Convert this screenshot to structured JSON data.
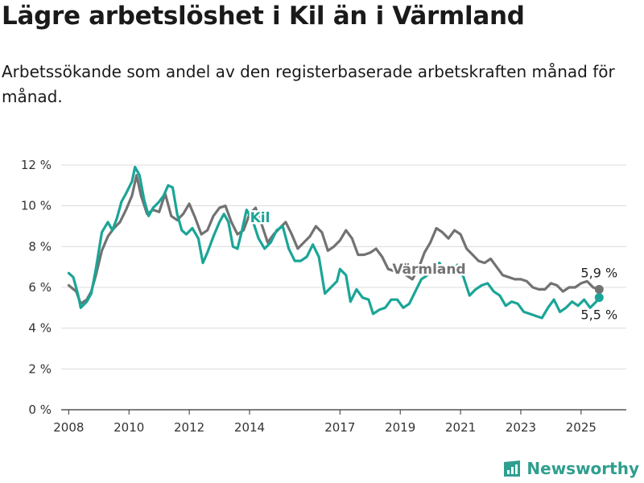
{
  "header": {
    "title": "Lägre arbetslöshet i Kil än i Värmland",
    "subtitle": "Arbetssökande som andel av den registerbaserade arbetskraften månad för månad."
  },
  "brand": {
    "name": "Newsworthy",
    "icon": "newsworthy-logo-icon",
    "color": "#2f9e8f"
  },
  "chart_data": {
    "type": "line",
    "title": "",
    "xlabel": "",
    "ylabel": "",
    "ylim": [
      0,
      12
    ],
    "xlim": [
      2007.75,
      2026.5
    ],
    "grid": true,
    "y_ticks": [
      0,
      2,
      4,
      6,
      8,
      10,
      12
    ],
    "y_tick_labels": [
      "0 %",
      "2 %",
      "4 %",
      "6 %",
      "8 %",
      "10 %",
      "12 %"
    ],
    "x_ticks": [
      2008,
      2010,
      2012,
      2014,
      2017,
      2019,
      2021,
      2023,
      2025
    ],
    "x_tick_labels": [
      "2008",
      "2010",
      "2012",
      "2014",
      "2017",
      "2019",
      "2021",
      "2023",
      "2025"
    ],
    "series": [
      {
        "name": "Värmland",
        "color": "#727272",
        "end_label": "5,9 %",
        "points": [
          [
            2008.0,
            6.1
          ],
          [
            2008.25,
            5.8
          ],
          [
            2008.4,
            5.2
          ],
          [
            2008.6,
            5.4
          ],
          [
            2008.75,
            5.8
          ],
          [
            2008.9,
            6.6
          ],
          [
            2009.1,
            7.8
          ],
          [
            2009.3,
            8.5
          ],
          [
            2009.5,
            8.9
          ],
          [
            2009.7,
            9.2
          ],
          [
            2009.9,
            9.8
          ],
          [
            2010.1,
            10.5
          ],
          [
            2010.25,
            11.5
          ],
          [
            2010.4,
            10.5
          ],
          [
            2010.6,
            9.6
          ],
          [
            2010.8,
            9.8
          ],
          [
            2011.0,
            9.7
          ],
          [
            2011.2,
            10.6
          ],
          [
            2011.4,
            9.5
          ],
          [
            2011.6,
            9.3
          ],
          [
            2011.8,
            9.6
          ],
          [
            2012.0,
            10.1
          ],
          [
            2012.2,
            9.4
          ],
          [
            2012.4,
            8.6
          ],
          [
            2012.6,
            8.8
          ],
          [
            2012.8,
            9.5
          ],
          [
            2013.0,
            9.9
          ],
          [
            2013.2,
            10.0
          ],
          [
            2013.4,
            9.2
          ],
          [
            2013.6,
            8.6
          ],
          [
            2013.8,
            8.8
          ],
          [
            2014.0,
            9.6
          ],
          [
            2014.2,
            9.9
          ],
          [
            2014.4,
            9.1
          ],
          [
            2014.6,
            8.2
          ],
          [
            2014.8,
            8.6
          ],
          [
            2015.0,
            8.9
          ],
          [
            2015.2,
            9.2
          ],
          [
            2015.4,
            8.6
          ],
          [
            2015.6,
            7.9
          ],
          [
            2015.8,
            8.2
          ],
          [
            2016.0,
            8.5
          ],
          [
            2016.2,
            9.0
          ],
          [
            2016.4,
            8.7
          ],
          [
            2016.6,
            7.8
          ],
          [
            2016.8,
            8.0
          ],
          [
            2017.0,
            8.3
          ],
          [
            2017.2,
            8.8
          ],
          [
            2017.4,
            8.4
          ],
          [
            2017.6,
            7.6
          ],
          [
            2017.8,
            7.6
          ],
          [
            2018.0,
            7.7
          ],
          [
            2018.2,
            7.9
          ],
          [
            2018.4,
            7.5
          ],
          [
            2018.6,
            6.9
          ],
          [
            2018.8,
            6.8
          ],
          [
            2019.0,
            7.0
          ],
          [
            2019.2,
            6.6
          ],
          [
            2019.4,
            6.4
          ],
          [
            2019.6,
            6.9
          ],
          [
            2019.8,
            7.7
          ],
          [
            2020.0,
            8.2
          ],
          [
            2020.2,
            8.9
          ],
          [
            2020.4,
            8.7
          ],
          [
            2020.6,
            8.4
          ],
          [
            2020.8,
            8.8
          ],
          [
            2021.0,
            8.6
          ],
          [
            2021.2,
            7.9
          ],
          [
            2021.4,
            7.6
          ],
          [
            2021.6,
            7.3
          ],
          [
            2021.8,
            7.2
          ],
          [
            2022.0,
            7.4
          ],
          [
            2022.2,
            7.0
          ],
          [
            2022.4,
            6.6
          ],
          [
            2022.6,
            6.5
          ],
          [
            2022.8,
            6.4
          ],
          [
            2023.0,
            6.4
          ],
          [
            2023.2,
            6.3
          ],
          [
            2023.4,
            6.0
          ],
          [
            2023.6,
            5.9
          ],
          [
            2023.8,
            5.9
          ],
          [
            2024.0,
            6.2
          ],
          [
            2024.2,
            6.1
          ],
          [
            2024.4,
            5.8
          ],
          [
            2024.6,
            6.0
          ],
          [
            2024.8,
            6.0
          ],
          [
            2025.0,
            6.2
          ],
          [
            2025.2,
            6.3
          ],
          [
            2025.4,
            6.0
          ],
          [
            2025.6,
            5.9
          ]
        ]
      },
      {
        "name": "Kil",
        "color": "#1aa597",
        "end_label": "5,5 %",
        "points": [
          [
            2008.0,
            6.7
          ],
          [
            2008.15,
            6.5
          ],
          [
            2008.3,
            5.7
          ],
          [
            2008.4,
            5.0
          ],
          [
            2008.6,
            5.3
          ],
          [
            2008.75,
            5.7
          ],
          [
            2008.9,
            6.9
          ],
          [
            2009.1,
            8.7
          ],
          [
            2009.3,
            9.2
          ],
          [
            2009.45,
            8.8
          ],
          [
            2009.6,
            9.4
          ],
          [
            2009.75,
            10.2
          ],
          [
            2009.9,
            10.6
          ],
          [
            2010.1,
            11.2
          ],
          [
            2010.2,
            11.9
          ],
          [
            2010.35,
            11.5
          ],
          [
            2010.5,
            10.3
          ],
          [
            2010.65,
            9.5
          ],
          [
            2010.8,
            9.9
          ],
          [
            2011.0,
            10.2
          ],
          [
            2011.15,
            10.5
          ],
          [
            2011.3,
            11.0
          ],
          [
            2011.45,
            10.9
          ],
          [
            2011.6,
            9.6
          ],
          [
            2011.75,
            8.8
          ],
          [
            2011.9,
            8.6
          ],
          [
            2012.1,
            8.9
          ],
          [
            2012.3,
            8.4
          ],
          [
            2012.45,
            7.2
          ],
          [
            2012.6,
            7.7
          ],
          [
            2012.8,
            8.5
          ],
          [
            2013.0,
            9.2
          ],
          [
            2013.15,
            9.6
          ],
          [
            2013.3,
            9.2
          ],
          [
            2013.45,
            8.0
          ],
          [
            2013.6,
            7.9
          ],
          [
            2013.75,
            8.8
          ],
          [
            2013.9,
            9.8
          ],
          [
            2014.1,
            9.3
          ],
          [
            2014.3,
            8.4
          ],
          [
            2014.5,
            7.9
          ],
          [
            2014.7,
            8.2
          ],
          [
            2014.9,
            8.8
          ],
          [
            2015.1,
            9.0
          ],
          [
            2015.3,
            7.9
          ],
          [
            2015.5,
            7.3
          ],
          [
            2015.7,
            7.3
          ],
          [
            2015.9,
            7.5
          ],
          [
            2016.1,
            8.1
          ],
          [
            2016.3,
            7.5
          ],
          [
            2016.5,
            5.7
          ],
          [
            2016.7,
            6.0
          ],
          [
            2016.9,
            6.3
          ],
          [
            2017.0,
            6.9
          ],
          [
            2017.2,
            6.6
          ],
          [
            2017.35,
            5.3
          ],
          [
            2017.55,
            5.9
          ],
          [
            2017.75,
            5.5
          ],
          [
            2017.95,
            5.4
          ],
          [
            2018.1,
            4.7
          ],
          [
            2018.3,
            4.9
          ],
          [
            2018.5,
            5.0
          ],
          [
            2018.7,
            5.4
          ],
          [
            2018.9,
            5.4
          ],
          [
            2019.1,
            5.0
          ],
          [
            2019.3,
            5.2
          ],
          [
            2019.5,
            5.8
          ],
          [
            2019.7,
            6.4
          ],
          [
            2019.9,
            6.6
          ],
          [
            2020.1,
            6.8
          ],
          [
            2020.3,
            7.2
          ],
          [
            2020.5,
            6.7
          ],
          [
            2020.7,
            6.8
          ],
          [
            2020.9,
            7.1
          ],
          [
            2021.1,
            6.5
          ],
          [
            2021.3,
            5.6
          ],
          [
            2021.5,
            5.9
          ],
          [
            2021.7,
            6.1
          ],
          [
            2021.9,
            6.2
          ],
          [
            2022.1,
            5.8
          ],
          [
            2022.3,
            5.6
          ],
          [
            2022.5,
            5.1
          ],
          [
            2022.7,
            5.3
          ],
          [
            2022.9,
            5.2
          ],
          [
            2023.1,
            4.8
          ],
          [
            2023.3,
            4.7
          ],
          [
            2023.5,
            4.6
          ],
          [
            2023.7,
            4.5
          ],
          [
            2023.9,
            5.0
          ],
          [
            2024.1,
            5.4
          ],
          [
            2024.3,
            4.8
          ],
          [
            2024.5,
            5.0
          ],
          [
            2024.7,
            5.3
          ],
          [
            2024.9,
            5.1
          ],
          [
            2025.1,
            5.4
          ],
          [
            2025.3,
            5.0
          ],
          [
            2025.5,
            5.3
          ],
          [
            2025.6,
            5.5
          ]
        ]
      }
    ]
  }
}
